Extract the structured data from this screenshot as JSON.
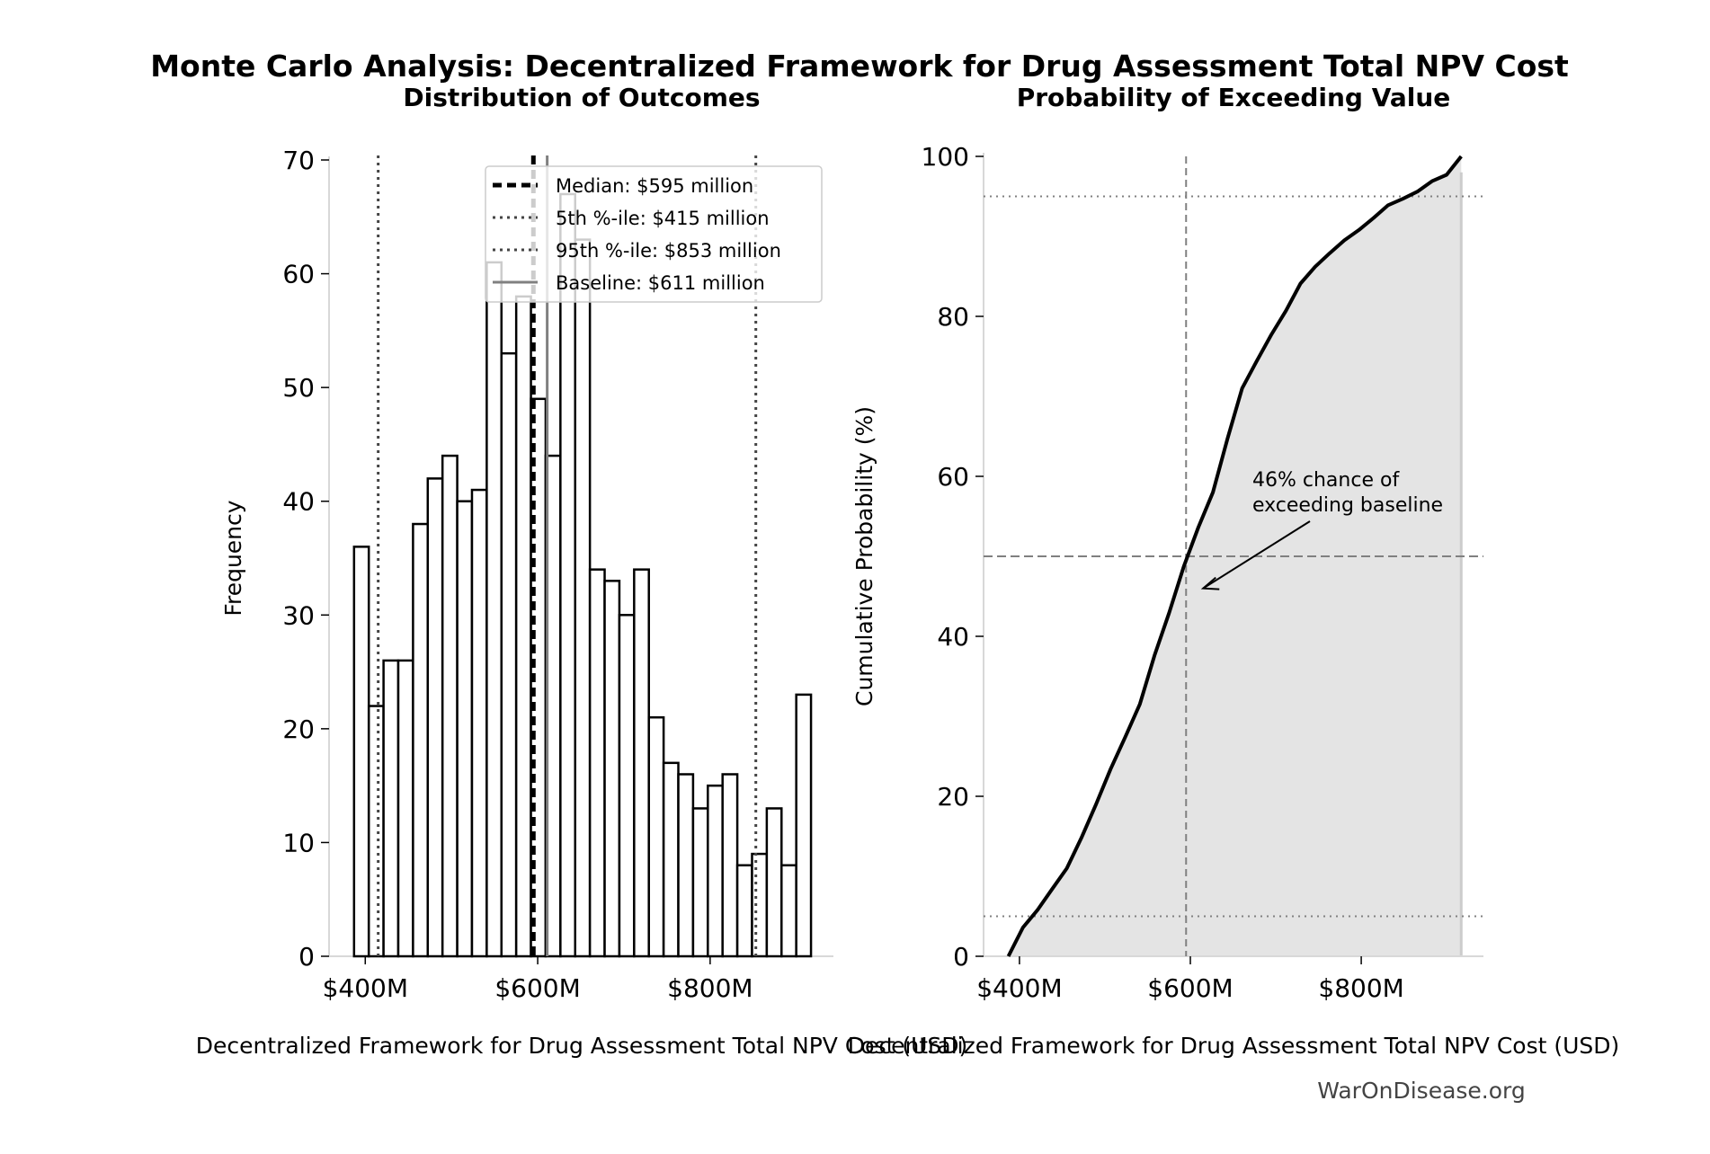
{
  "title": "Monte Carlo Analysis: Decentralized Framework for Drug Assessment Total NPV Cost",
  "watermark": "WarOnDisease.org",
  "chart_data": [
    {
      "type": "bar",
      "title": "Distribution of Outcomes",
      "xlabel": "Decentralized Framework for Drug Assessment Total NPV Cost (USD)",
      "ylabel": "Frequency",
      "bin_range_musd": [
        387,
        917
      ],
      "counts": [
        36,
        22,
        26,
        26,
        38,
        42,
        44,
        40,
        41,
        61,
        53,
        58,
        49,
        44,
        67,
        63,
        34,
        33,
        30,
        34,
        21,
        17,
        16,
        13,
        15,
        16,
        8,
        9,
        13,
        8,
        23
      ],
      "xlim": [
        358,
        943
      ],
      "ylim": [
        0,
        70
      ],
      "xticks": [
        400,
        600,
        800
      ],
      "xtick_labels": [
        "$400M",
        "$600M",
        "$800M"
      ],
      "yticks": [
        0,
        10,
        20,
        30,
        40,
        50,
        60,
        70
      ],
      "ytick_labels": [
        "0",
        "10",
        "20",
        "30",
        "40",
        "50",
        "60",
        "70"
      ],
      "legend_position": "top-right",
      "reference_lines": [
        {
          "label": "Median: $595 million",
          "value": 595,
          "style": "dashed",
          "color": "#000000"
        },
        {
          "label": "5th %-ile: $415 million",
          "value": 415,
          "style": "dotted",
          "color": "#444444"
        },
        {
          "label": "95th %-ile: $853 million",
          "value": 853,
          "style": "dotted",
          "color": "#444444"
        },
        {
          "label": "Baseline: $611 million",
          "value": 611,
          "style": "solid",
          "color": "#808080"
        }
      ]
    },
    {
      "type": "area",
      "title": "Probability of Exceeding Value",
      "xlabel": "Decentralized Framework for Drug Assessment Total NPV Cost (USD)",
      "ylabel": "Cumulative Probability (%)",
      "xlim": [
        358,
        943
      ],
      "ylim": [
        0,
        100
      ],
      "xticks": [
        400,
        600,
        800
      ],
      "xtick_labels": [
        "$400M",
        "$600M",
        "$800M"
      ],
      "yticks": [
        0,
        20,
        40,
        60,
        80,
        100
      ],
      "ytick_labels": [
        "0",
        "20",
        "40",
        "60",
        "80",
        "100"
      ],
      "fill_color": "#e4e4e4",
      "hlines": [
        {
          "value": 95,
          "style": "dotted"
        },
        {
          "value": 50,
          "style": "dashed"
        },
        {
          "value": 5,
          "style": "dotted"
        }
      ],
      "vline": {
        "value": 595,
        "style": "dashed"
      },
      "annotation": {
        "line1": "46% chance of",
        "line2": "exceeding baseline",
        "arrow_to": [
          615,
          46
        ]
      }
    }
  ]
}
